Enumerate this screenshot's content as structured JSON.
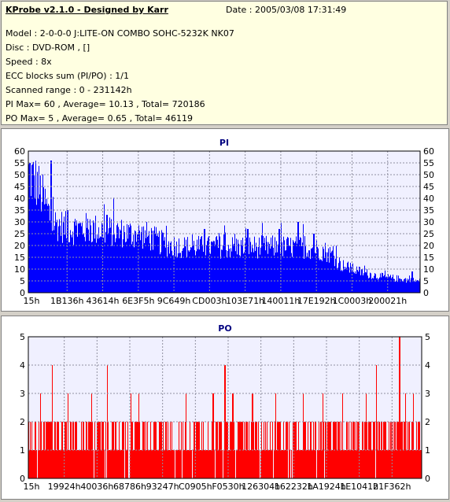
{
  "info": {
    "title": "KProbe v2.1.0 - Designed by Karr",
    "date": "Date : 2005/03/08 17:31:49",
    "lines": [
      "Model : 2-0-0-0 J:LITE-ON COMBO SOHC-5232K NK07",
      "Disc : DVD-ROM ,  []",
      "Speed : 8x",
      "ECC blocks sum (PI/PO) : 1/1",
      "Scanned range : 0 - 231142h",
      "PI Max= 60 , Average= 10.13 , Total= 720186",
      "PO Max= 5 , Average= 0.65 , Total= 46119"
    ]
  },
  "colors": {
    "pi_bars": "#0000ff",
    "po_bars": "#ff0000",
    "plot_bg": "#f0f0ff",
    "grid": "#9090a0",
    "title": "#000080"
  },
  "chart_data": [
    {
      "type": "bar",
      "title": "PI",
      "ylim": [
        0,
        60
      ],
      "yticks": [
        0,
        5,
        10,
        15,
        20,
        25,
        30,
        35,
        40,
        45,
        50,
        55,
        60
      ],
      "xticks": [
        "15h",
        "1B136h",
        "43614h",
        "6E3F5h",
        "9C649h",
        "CD003h",
        "103E71h",
        "140011h",
        "17E192h",
        "1C0003h",
        "200021h"
      ],
      "x_range": [
        0,
        231142
      ],
      "grid": true,
      "profile": [
        [
          0,
          52
        ],
        [
          0.02,
          48
        ],
        [
          0.04,
          40
        ],
        [
          0.06,
          31
        ],
        [
          0.1,
          28
        ],
        [
          0.15,
          28
        ],
        [
          0.2,
          27
        ],
        [
          0.25,
          26
        ],
        [
          0.3,
          25
        ],
        [
          0.35,
          21
        ],
        [
          0.4,
          20
        ],
        [
          0.45,
          20
        ],
        [
          0.5,
          20
        ],
        [
          0.55,
          20
        ],
        [
          0.6,
          20
        ],
        [
          0.65,
          20
        ],
        [
          0.7,
          20
        ],
        [
          0.74,
          19
        ],
        [
          0.76,
          18
        ],
        [
          0.78,
          16
        ],
        [
          0.8,
          12
        ],
        [
          0.85,
          9
        ],
        [
          0.9,
          7
        ],
        [
          0.95,
          6
        ],
        [
          1,
          5
        ]
      ],
      "peaks": [
        [
          0.004,
          55
        ],
        [
          0.01,
          50
        ],
        [
          0.058,
          56
        ],
        [
          0.1,
          35
        ],
        [
          0.2,
          33
        ],
        [
          0.45,
          27
        ],
        [
          0.56,
          27
        ],
        [
          0.64,
          27
        ],
        [
          0.69,
          30
        ],
        [
          0.73,
          25
        ],
        [
          0.98,
          9
        ]
      ]
    },
    {
      "type": "bar",
      "title": "PO",
      "ylim": [
        0,
        5
      ],
      "yticks": [
        0,
        1,
        2,
        3,
        4,
        5
      ],
      "xticks": [
        "15h",
        "19924h",
        "40036h",
        "68786h",
        "93247h",
        "C0905h",
        "F0530h",
        "126304h",
        "162232h",
        "1A1924h",
        "1E1041h",
        "21F362h"
      ],
      "x_range": [
        0,
        231142
      ],
      "grid": true,
      "spikes": [
        [
          0.06,
          4
        ],
        [
          0.2,
          4
        ],
        [
          0.5,
          4
        ],
        [
          0.885,
          4
        ],
        [
          0.945,
          5
        ],
        [
          0.03,
          3
        ],
        [
          0.06,
          3
        ],
        [
          0.1,
          3
        ],
        [
          0.16,
          3
        ],
        [
          0.26,
          3
        ],
        [
          0.28,
          3
        ],
        [
          0.4,
          3
        ],
        [
          0.47,
          3
        ],
        [
          0.52,
          3
        ],
        [
          0.57,
          3
        ],
        [
          0.63,
          3
        ],
        [
          0.7,
          3
        ],
        [
          0.75,
          3
        ],
        [
          0.8,
          3
        ],
        [
          0.86,
          3
        ],
        [
          0.96,
          3
        ],
        [
          0.98,
          3
        ]
      ]
    }
  ]
}
